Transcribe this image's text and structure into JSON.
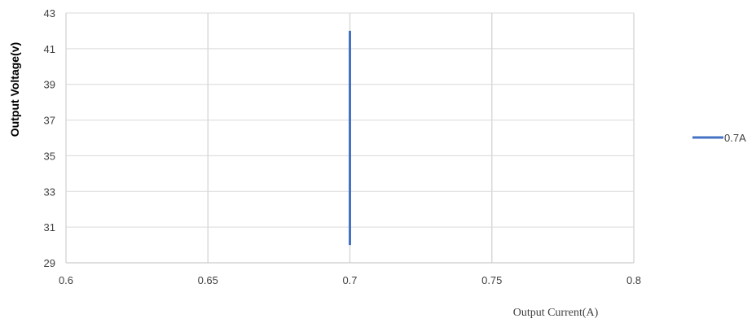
{
  "chart_data": {
    "type": "line",
    "xlabel": "Output Current(A)",
    "ylabel": "Output Voltage(v)",
    "xlim": [
      0.6,
      0.8
    ],
    "ylim": [
      29,
      43
    ],
    "x_ticks": [
      "0.6",
      "0.65",
      "0.7",
      "0.75",
      "0.8"
    ],
    "y_ticks": [
      "29",
      "31",
      "33",
      "35",
      "37",
      "39",
      "41",
      "43"
    ],
    "grid": true,
    "legend_position": "right",
    "series": [
      {
        "name": "0.7A",
        "color": "#4472c4",
        "x": [
          0.7,
          0.7
        ],
        "y": [
          30,
          42
        ]
      }
    ]
  }
}
